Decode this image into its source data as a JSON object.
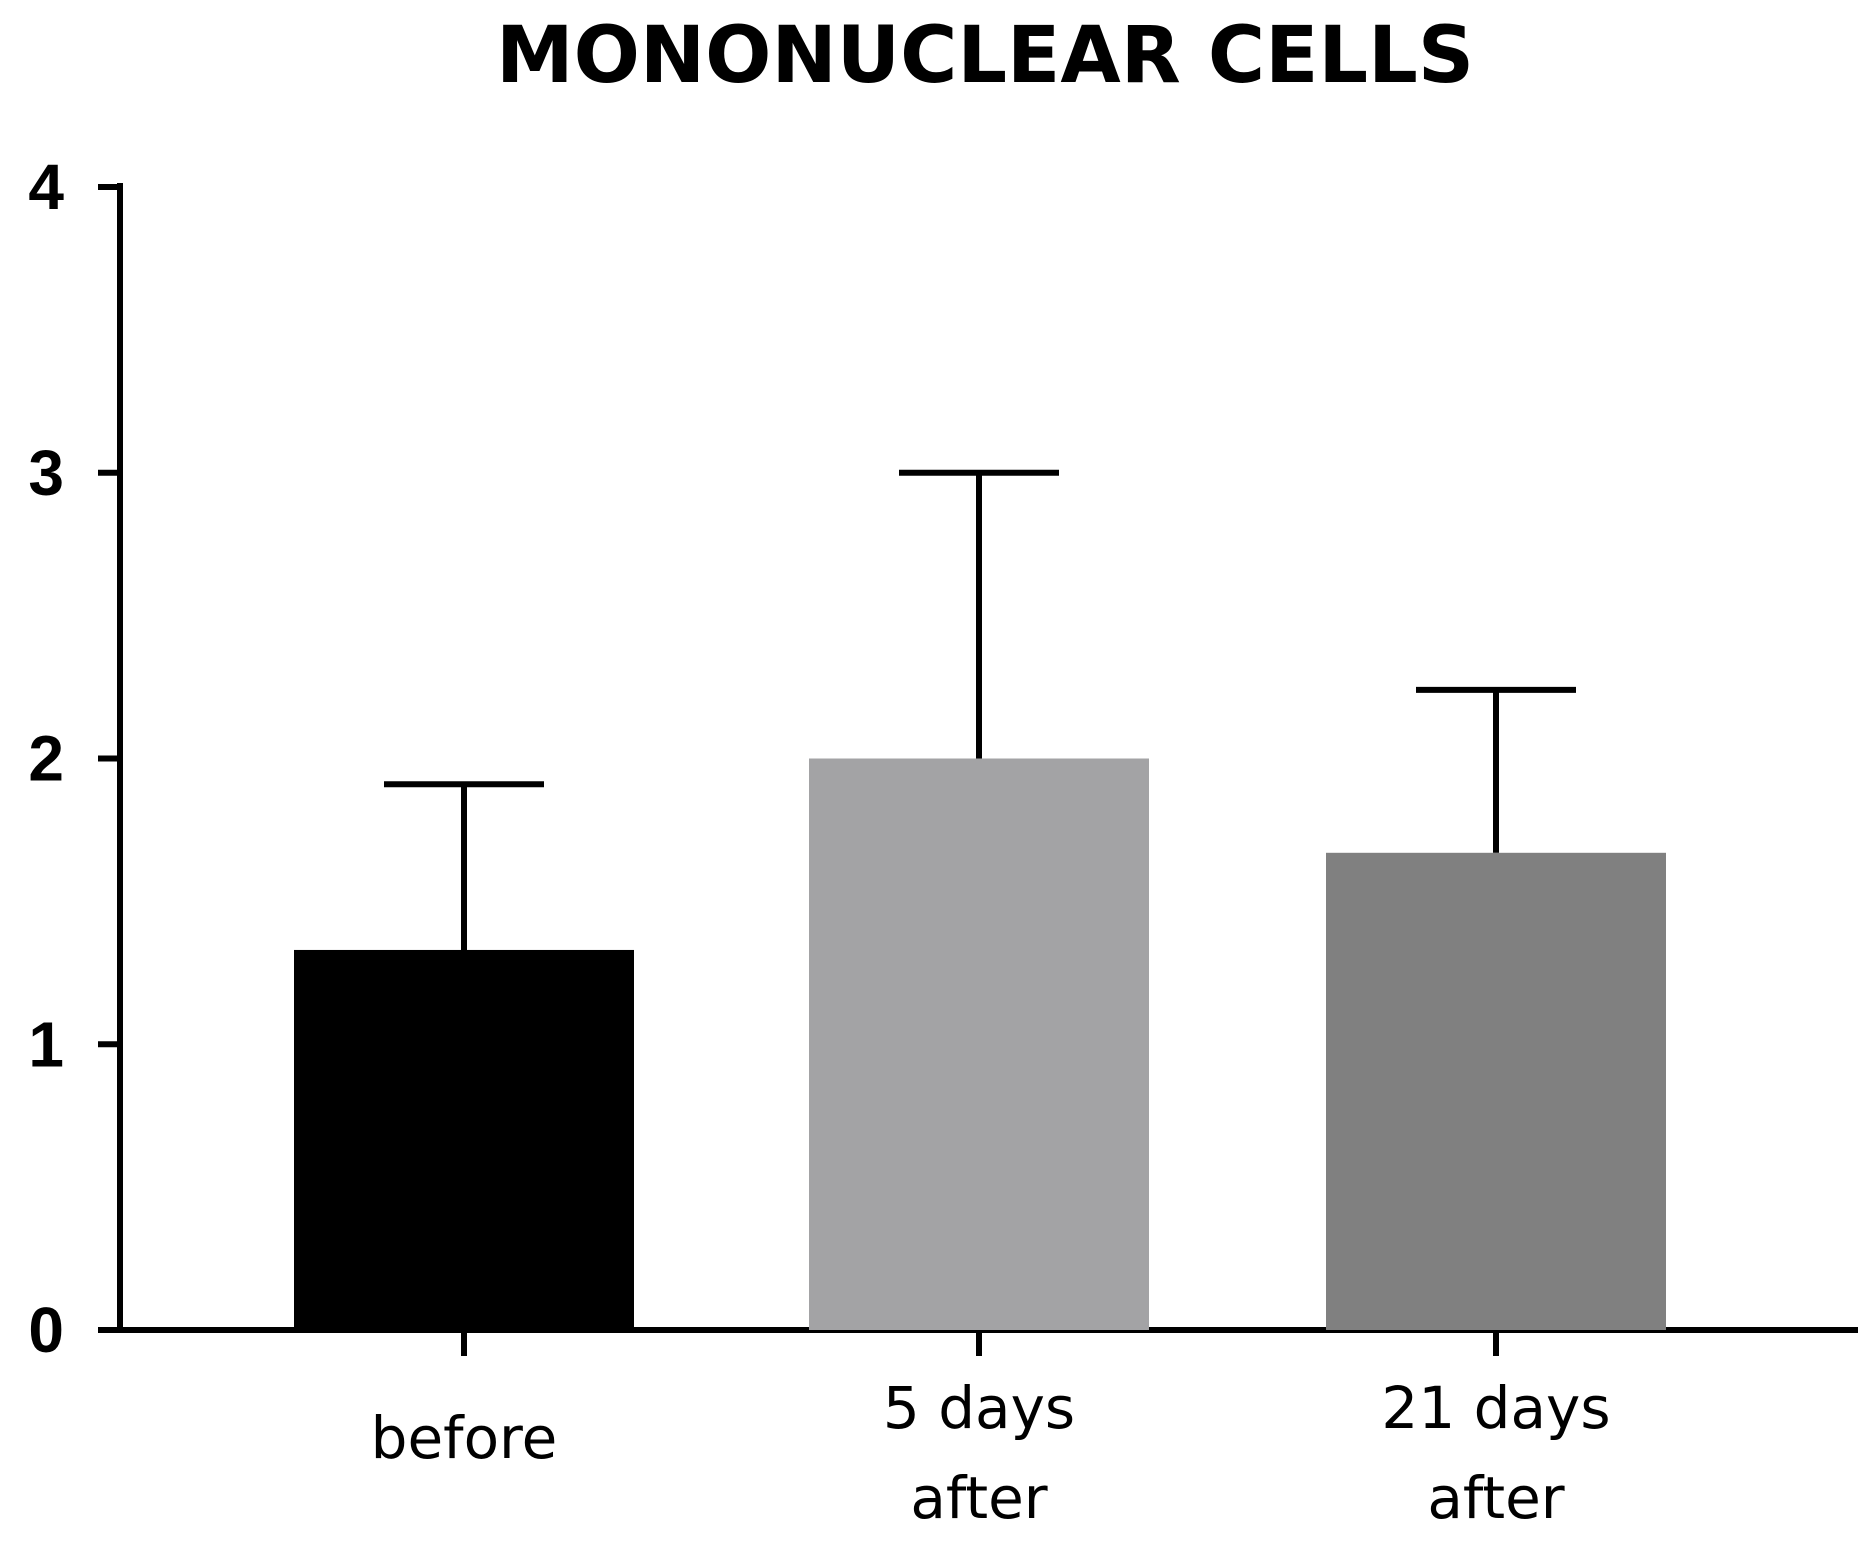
{
  "chart_data": {
    "type": "bar",
    "title": "MONONUCLEAR CELLS",
    "xlabel": "",
    "ylabel": "",
    "categories": [
      [
        "before"
      ],
      [
        "5 days",
        "after"
      ],
      [
        "21 days",
        "after"
      ]
    ],
    "values": [
      1.33,
      2.0,
      1.67
    ],
    "error_upper": [
      1.91,
      3.0,
      2.24
    ],
    "bar_colors": [
      "#000000",
      "#a3a3a5",
      "#808080"
    ],
    "ylim": [
      0,
      4
    ],
    "yticks": [
      "0",
      "1",
      "2",
      "3",
      "4"
    ],
    "grid": false,
    "legend": "none"
  }
}
